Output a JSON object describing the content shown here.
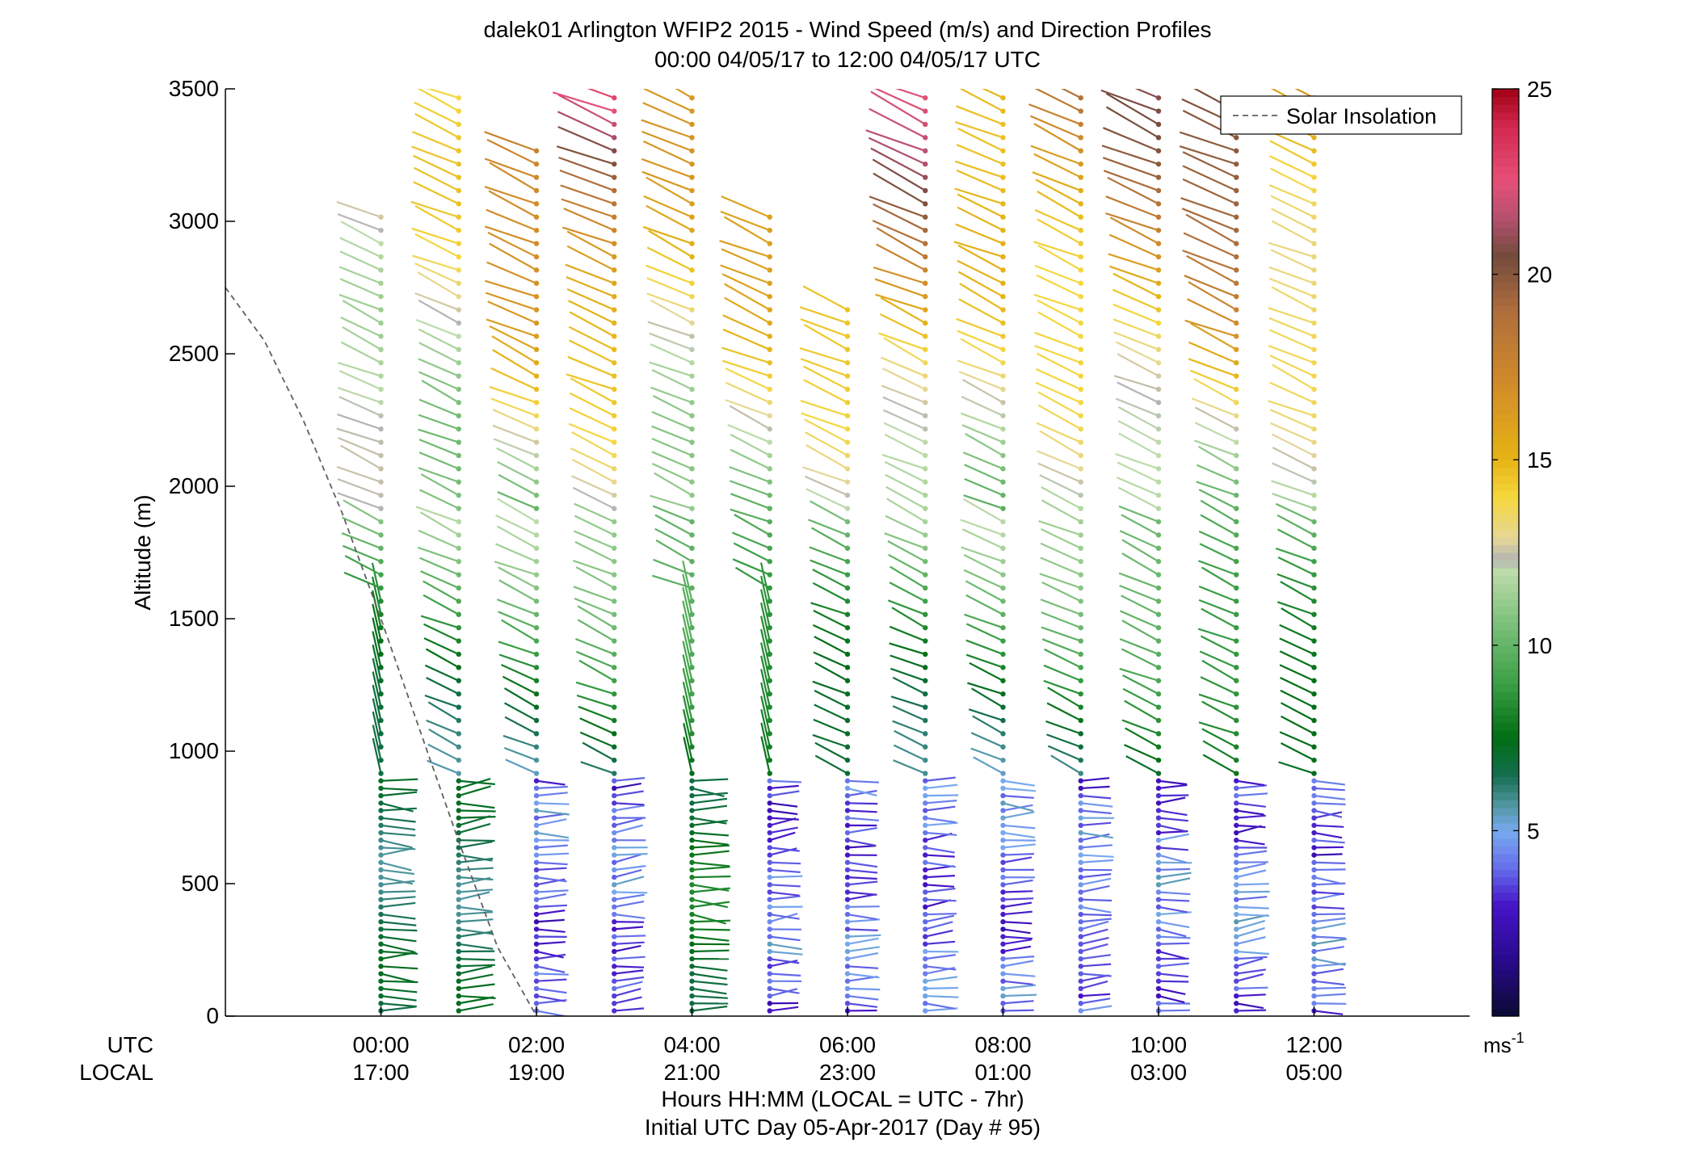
{
  "chart_data": {
    "type": "wind-profile",
    "title": "dalek01 Arlington WFIP2 2015 - Wind Speed (m/s) and Direction Profiles",
    "subtitle": "00:00 04/05/17 to 12:00 04/05/17  UTC",
    "ylabel": "Altitude (m)",
    "xlabel": "Hours HH:MM  (LOCAL = UTC - 7hr)",
    "xlabel2": "Initial UTC Day 05-Apr-2017 (Day # 95)",
    "row_label_utc": "UTC",
    "row_label_local": "LOCAL",
    "xlim_hours": [
      -2,
      14
    ],
    "ylim": [
      0,
      3500
    ],
    "yticks": [
      "0",
      "500",
      "1000",
      "1500",
      "2000",
      "2500",
      "3000",
      "3500"
    ],
    "xticks_utc": [
      "00:00",
      "02:00",
      "04:00",
      "06:00",
      "08:00",
      "10:00",
      "12:00"
    ],
    "xticks_local": [
      "17:00",
      "19:00",
      "21:00",
      "23:00",
      "01:00",
      "03:00",
      "05:00"
    ],
    "xtick_hours": [
      0,
      2,
      4,
      6,
      8,
      10,
      12
    ],
    "legend": {
      "label": "Solar Insolation",
      "position": "top-right",
      "line_color": "#606060"
    },
    "colorbar": {
      "min": 0,
      "max": 25,
      "ticks": [
        "5",
        "10",
        "15",
        "20",
        "25"
      ],
      "unit": "ms",
      "unit_exp": "-1"
    },
    "profile_times_hours": [
      0,
      1,
      2,
      3,
      4,
      5,
      6,
      7,
      8,
      9,
      10,
      11,
      12
    ],
    "profile_tops_m": [
      3040,
      3470,
      3310,
      3470,
      3470,
      3040,
      2680,
      3470,
      3470,
      3470,
      3470,
      3440,
      3470
    ],
    "solar_insolation_curve": [
      {
        "hour": -2.0,
        "altitude": 2750
      },
      {
        "hour": -1.5,
        "altitude": 2550
      },
      {
        "hour": -1.0,
        "altitude": 2250
      },
      {
        "hour": -0.5,
        "altitude": 1900
      },
      {
        "hour": 0.0,
        "altitude": 1500
      },
      {
        "hour": 0.5,
        "altitude": 1080
      },
      {
        "hour": 1.0,
        "altitude": 660
      },
      {
        "hour": 1.5,
        "altitude": 260
      },
      {
        "hour": 2.0,
        "altitude": 0
      }
    ],
    "grid": false
  }
}
